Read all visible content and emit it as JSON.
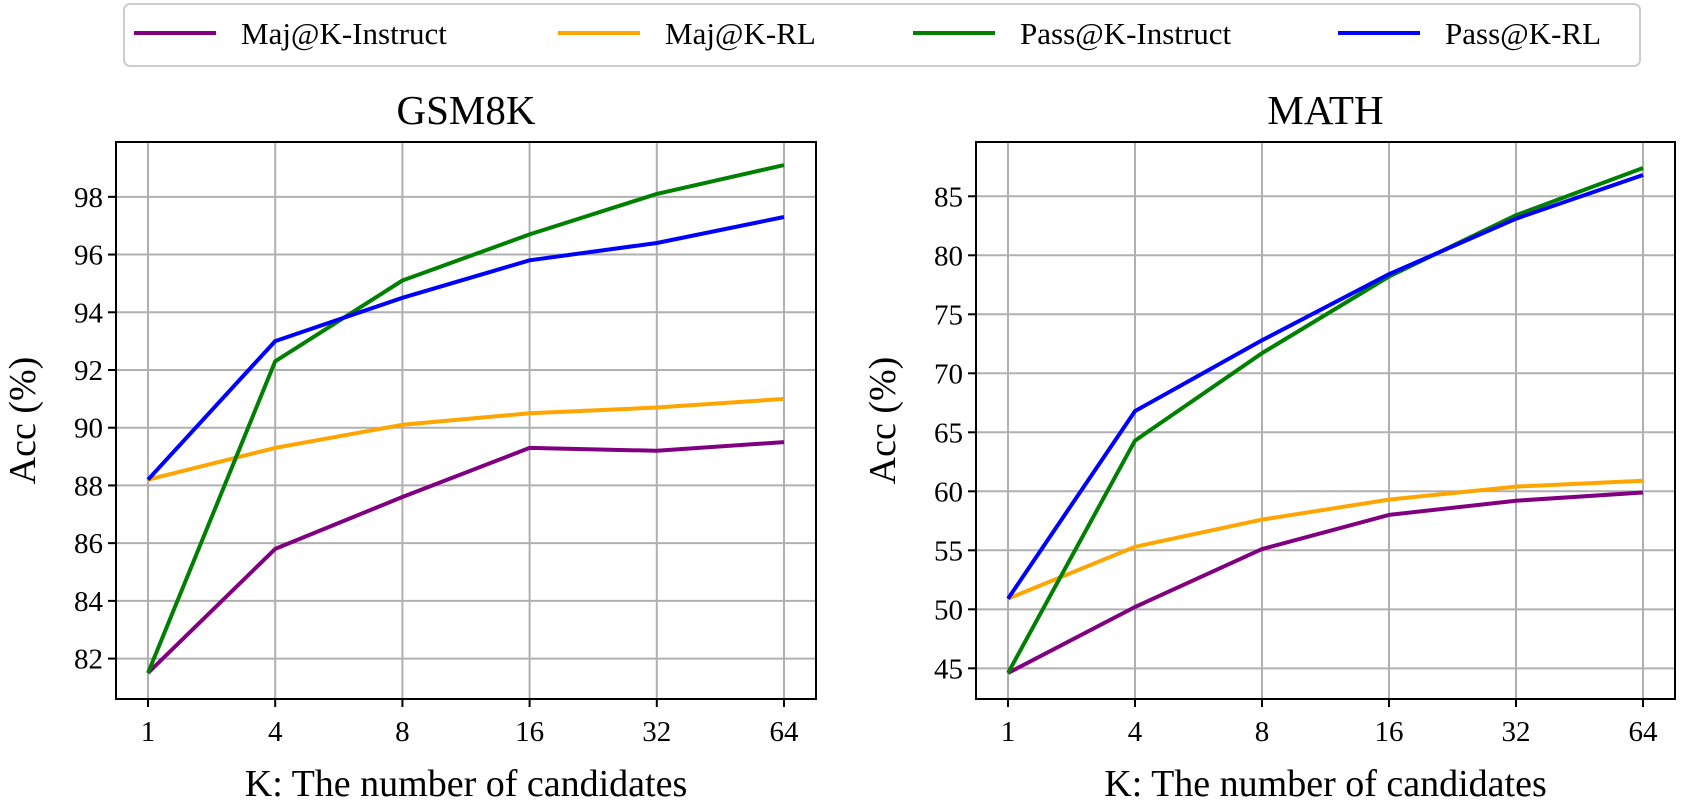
{
  "legend": [
    {
      "name": "Maj@K-Instruct",
      "color": "#800080"
    },
    {
      "name": "Maj@K-RL",
      "color": "#FFA500"
    },
    {
      "name": "Pass@K-Instruct",
      "color": "#008000"
    },
    {
      "name": "Pass@K-RL",
      "color": "#0000FF"
    }
  ],
  "chart_data": [
    {
      "type": "line",
      "title": "GSM8K",
      "xlabel": "K: The number of candidates",
      "ylabel": "Acc (%)",
      "categories": [
        "1",
        "4",
        "8",
        "16",
        "32",
        "64"
      ],
      "yticks": [
        82,
        84,
        86,
        88,
        90,
        92,
        94,
        96,
        98
      ],
      "ylim": [
        80.6,
        99.9
      ],
      "grid": true,
      "series": [
        {
          "name": "Maj@K-Instruct",
          "color": "#800080",
          "values": [
            81.5,
            85.8,
            87.6,
            89.3,
            89.2,
            89.5
          ]
        },
        {
          "name": "Maj@K-RL",
          "color": "#FFA500",
          "values": [
            88.2,
            89.3,
            90.1,
            90.5,
            90.7,
            91.0
          ]
        },
        {
          "name": "Pass@K-Instruct",
          "color": "#008000",
          "values": [
            81.5,
            92.3,
            95.1,
            96.7,
            98.1,
            99.1
          ]
        },
        {
          "name": "Pass@K-RL",
          "color": "#0000FF",
          "values": [
            88.2,
            93.0,
            94.5,
            95.8,
            96.4,
            97.3
          ]
        }
      ]
    },
    {
      "type": "line",
      "title": "MATH",
      "xlabel": "K: The number of candidates",
      "ylabel": "Acc (%)",
      "categories": [
        "1",
        "4",
        "8",
        "16",
        "32",
        "64"
      ],
      "yticks": [
        45,
        50,
        55,
        60,
        65,
        70,
        75,
        80,
        85
      ],
      "ylim": [
        42.4,
        89.6
      ],
      "grid": true,
      "series": [
        {
          "name": "Maj@K-Instruct",
          "color": "#800080",
          "values": [
            44.6,
            50.2,
            55.1,
            58.0,
            59.2,
            59.9
          ]
        },
        {
          "name": "Maj@K-RL",
          "color": "#FFA500",
          "values": [
            50.9,
            55.3,
            57.6,
            59.3,
            60.4,
            60.9
          ]
        },
        {
          "name": "Pass@K-Instruct",
          "color": "#008000",
          "values": [
            44.6,
            64.3,
            71.7,
            78.2,
            83.4,
            87.4
          ]
        },
        {
          "name": "Pass@K-RL",
          "color": "#0000FF",
          "values": [
            50.9,
            66.8,
            72.8,
            78.4,
            83.1,
            86.8
          ]
        }
      ]
    }
  ]
}
